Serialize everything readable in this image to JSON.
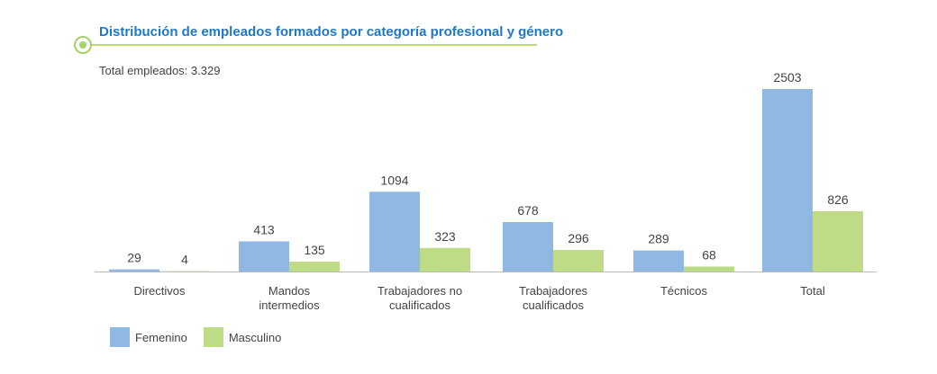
{
  "header": {
    "title": "Distribución de empleados formados por categoría profesional y género",
    "subtitle": "Total empleados: 3.329"
  },
  "colors": {
    "title": "#1E78C8",
    "accent": "#A6D26A",
    "femenino": "#8FB9E3",
    "masculino": "#BEDC85",
    "baseline": "#BBBBBB",
    "text": "#444444"
  },
  "chart_data": {
    "type": "bar",
    "categories": [
      [
        "Directivos"
      ],
      [
        "Mandos",
        "intermedios"
      ],
      [
        "Trabajadores no",
        "cualificados"
      ],
      [
        "Trabajadores",
        "cualificados"
      ],
      [
        "Técnicos"
      ],
      [
        "Total"
      ]
    ],
    "series": [
      {
        "name": "Femenino",
        "color": "#8FB9E3",
        "values": [
          29,
          413,
          1094,
          678,
          289,
          2503
        ]
      },
      {
        "name": "Masculino",
        "color": "#BEDC85",
        "values": [
          4,
          135,
          323,
          296,
          68,
          826
        ]
      }
    ],
    "ylim": [
      0,
      2503
    ],
    "grid": false,
    "legend_position": "bottom-left",
    "xlabel": "",
    "ylabel": ""
  }
}
